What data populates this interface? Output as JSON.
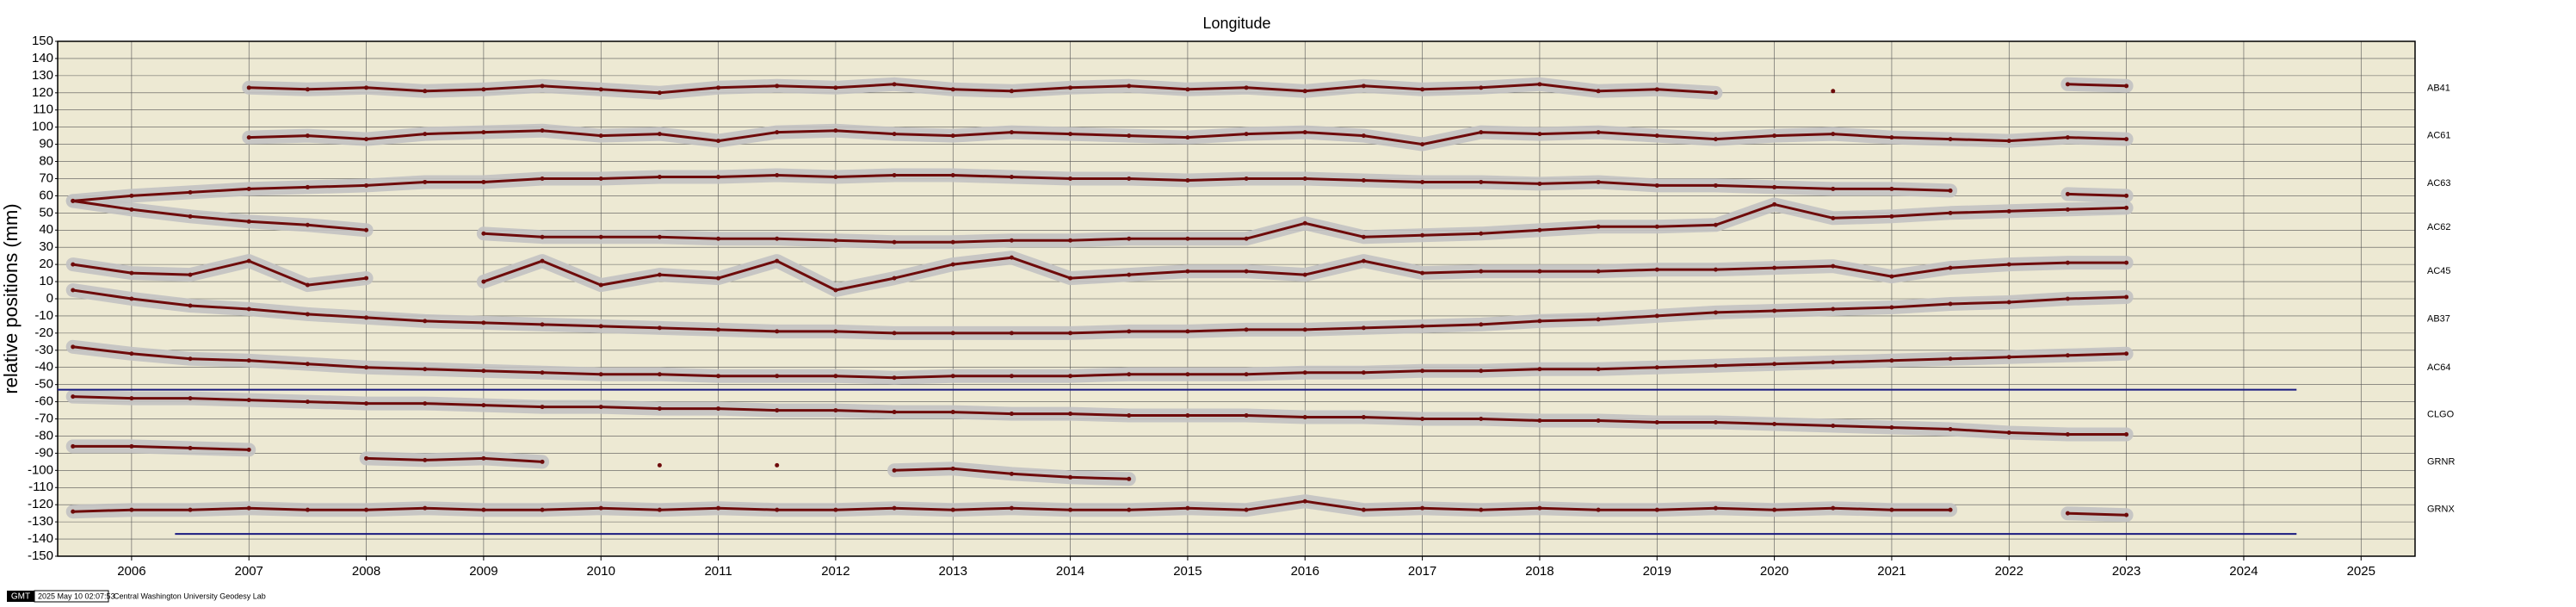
{
  "chart_data": {
    "type": "line",
    "title": "Longitude",
    "ylabel": "relative positions (mm)",
    "x": [
      2005.5,
      2006,
      2006.5,
      2007,
      2007.5,
      2008,
      2008.5,
      2009,
      2009.5,
      2010,
      2010.5,
      2011,
      2011.5,
      2012,
      2012.5,
      2013,
      2013.5,
      2014,
      2014.5,
      2015,
      2015.5,
      2016,
      2016.5,
      2017,
      2017.5,
      2018,
      2018.5,
      2019,
      2019.5,
      2020,
      2020.5,
      2021,
      2021.5,
      2022,
      2022.5,
      2023
    ],
    "series": [
      {
        "name": "AB41",
        "color": "#6e0b0b",
        "values": [
          null,
          null,
          null,
          123,
          122,
          123,
          121,
          122,
          124,
          122,
          120,
          123,
          124,
          123,
          125,
          122,
          121,
          123,
          124,
          122,
          123,
          121,
          124,
          122,
          123,
          125,
          121,
          122,
          120,
          null,
          121,
          null,
          null,
          null,
          125,
          124
        ]
      },
      {
        "name": "AC61",
        "color": "#6e0b0b",
        "values": [
          null,
          null,
          null,
          94,
          95,
          93,
          96,
          97,
          98,
          95,
          96,
          92,
          97,
          98,
          96,
          95,
          97,
          96,
          95,
          94,
          96,
          97,
          95,
          90,
          97,
          96,
          97,
          95,
          93,
          95,
          96,
          94,
          93,
          92,
          94,
          93
        ]
      },
      {
        "name": "AC63",
        "color": "#6e0b0b",
        "values": [
          57,
          60,
          62,
          64,
          65,
          66,
          68,
          68,
          70,
          70,
          71,
          71,
          72,
          71,
          72,
          72,
          71,
          70,
          70,
          69,
          70,
          70,
          69,
          68,
          68,
          67,
          68,
          66,
          66,
          65,
          64,
          64,
          63,
          null,
          61,
          60
        ]
      },
      {
        "name": "AC62",
        "color": "#6e0b0b",
        "values": [
          57,
          52,
          48,
          45,
          43,
          40,
          null,
          38,
          36,
          36,
          36,
          35,
          35,
          34,
          33,
          33,
          34,
          34,
          35,
          35,
          35,
          44,
          36,
          37,
          38,
          40,
          42,
          42,
          43,
          55,
          47,
          48,
          50,
          51,
          52,
          53
        ]
      },
      {
        "name": "AC45",
        "color": "#6e0b0b",
        "values": [
          20,
          15,
          14,
          22,
          8,
          12,
          null,
          10,
          22,
          8,
          14,
          12,
          22,
          5,
          12,
          20,
          24,
          12,
          14,
          16,
          16,
          14,
          22,
          15,
          16,
          16,
          16,
          17,
          17,
          18,
          19,
          13,
          18,
          20,
          21,
          21
        ]
      },
      {
        "name": "AB37",
        "color": "#6e0b0b",
        "values": [
          5,
          0,
          -4,
          -6,
          -9,
          -11,
          -13,
          -14,
          -15,
          -16,
          -17,
          -18,
          -19,
          -19,
          -20,
          -20,
          -20,
          -20,
          -19,
          -19,
          -18,
          -18,
          -17,
          -16,
          -15,
          -13,
          -12,
          -10,
          -8,
          -7,
          -6,
          -5,
          -3,
          -2,
          0,
          1
        ]
      },
      {
        "name": "AC64",
        "color": "#6e0b0b",
        "values": [
          -28,
          -32,
          -35,
          -36,
          -38,
          -40,
          -41,
          -42,
          -43,
          -44,
          -44,
          -45,
          -45,
          -45,
          -46,
          -45,
          -45,
          -45,
          -44,
          -44,
          -44,
          -43,
          -43,
          -42,
          -42,
          -41,
          -41,
          -40,
          -39,
          -38,
          -37,
          -36,
          -35,
          -34,
          -33,
          -32
        ]
      },
      {
        "name": "CLGO",
        "color": "#6e0b0b",
        "values": [
          -57,
          -58,
          -58,
          -59,
          -60,
          -61,
          -61,
          -62,
          -63,
          -63,
          -64,
          -64,
          -65,
          -65,
          -66,
          -66,
          -67,
          -67,
          -68,
          -68,
          -68,
          -69,
          -69,
          -70,
          -70,
          -71,
          -71,
          -72,
          -72,
          -73,
          -74,
          -75,
          -76,
          -78,
          -79,
          -79
        ]
      },
      {
        "name": "GRNR",
        "color": "#6e0b0b",
        "values": [
          -86,
          -86,
          -87,
          -88,
          null,
          -93,
          -94,
          -93,
          -95,
          null,
          -97,
          null,
          -97,
          null,
          -100,
          -99,
          -102,
          -104,
          -105,
          null,
          null,
          null,
          null,
          null,
          null,
          null,
          null,
          null,
          null,
          null,
          null,
          null,
          null,
          null,
          null,
          null
        ]
      },
      {
        "name": "GRNX",
        "color": "#6e0b0b",
        "values": [
          -124,
          -123,
          -123,
          -122,
          -123,
          -123,
          -122,
          -123,
          -123,
          -122,
          -123,
          -122,
          -123,
          -123,
          -122,
          -123,
          -122,
          -123,
          -123,
          -122,
          -123,
          -118,
          -123,
          -122,
          -123,
          -122,
          -123,
          -123,
          -122,
          -123,
          -122,
          -123,
          -123,
          null,
          -125,
          -126
        ]
      }
    ],
    "band_color": "#c2c2c2",
    "reference_lines": [
      {
        "y": -53,
        "x": [
          2005.37,
          2024.45
        ]
      },
      {
        "y": -137,
        "x": [
          2006.37,
          2024.45
        ]
      }
    ],
    "reference_color": "#1a1a80",
    "xlim": [
      2005.37,
      2025.46
    ],
    "ylim": [
      -150,
      150
    ],
    "xticks": [
      2006,
      2007,
      2008,
      2009,
      2010,
      2011,
      2012,
      2013,
      2014,
      2015,
      2016,
      2017,
      2018,
      2019,
      2020,
      2021,
      2022,
      2023,
      2024,
      2025
    ],
    "yticks": [
      -150,
      -140,
      -130,
      -120,
      -110,
      -100,
      -90,
      -80,
      -70,
      -60,
      -50,
      -40,
      -30,
      -20,
      -10,
      0,
      10,
      20,
      30,
      40,
      50,
      60,
      70,
      80,
      90,
      100,
      110,
      120,
      130,
      140,
      150
    ],
    "grid": true
  },
  "footer": {
    "badge": "GMT",
    "timestamp": "2025 May 10 02:07:53",
    "credit": "Central Washington University Geodesy Lab"
  }
}
